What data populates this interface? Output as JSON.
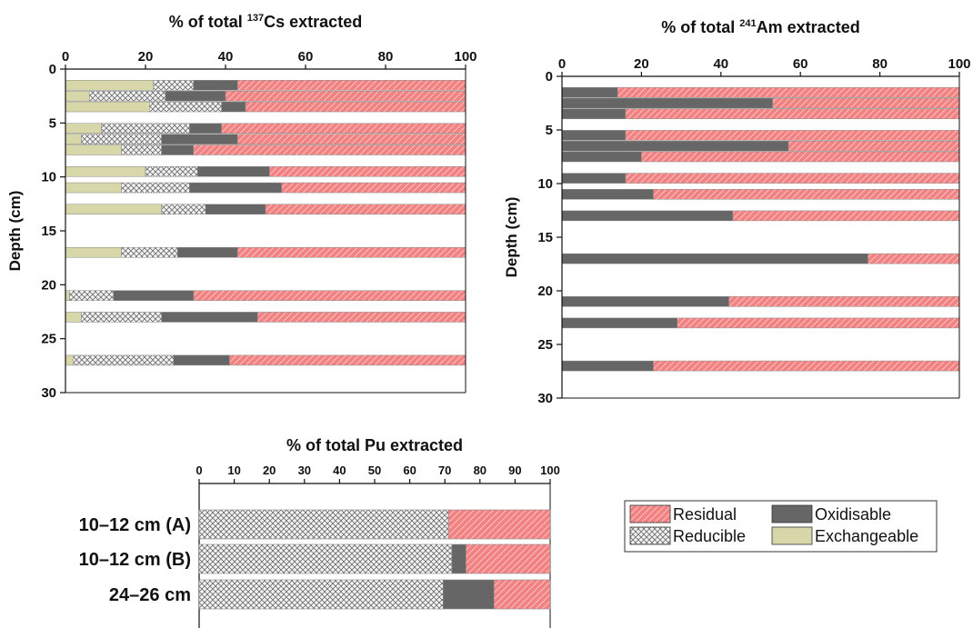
{
  "colors": {
    "Residual": "#f28282",
    "Residual_hatch": "#fbd2d2",
    "Oxidisable": "#666666",
    "Reducible": "#f4f4f4",
    "Reducible_hatch": "#6a6a6a",
    "Exchangeable": "#d7d7a9"
  },
  "chart_data": [
    {
      "type": "bar",
      "orientation": "horizontal",
      "stacked": true,
      "title_pre": "% of total ",
      "title_sup": "137",
      "title_post": "Cs extracted",
      "ylabel": "Depth (cm)",
      "xlim": [
        0,
        100
      ],
      "ylim": [
        30,
        0
      ],
      "xticks": [
        0,
        20,
        40,
        60,
        80,
        100
      ],
      "yticks": [
        0,
        5,
        10,
        15,
        20,
        25,
        30
      ],
      "series_order": [
        "Exchangeable",
        "Reducible",
        "Oxidisable",
        "Residual"
      ],
      "bars": [
        {
          "depth": 1.5,
          "Exchangeable": 22,
          "Reducible": 10,
          "Oxidisable": 11,
          "Residual": 57
        },
        {
          "depth": 2.5,
          "Exchangeable": 6,
          "Reducible": 19,
          "Oxidisable": 15,
          "Residual": 60
        },
        {
          "depth": 3.5,
          "Exchangeable": 21,
          "Reducible": 18,
          "Oxidisable": 6,
          "Residual": 55
        },
        {
          "depth": 5.5,
          "Exchangeable": 9,
          "Reducible": 22,
          "Oxidisable": 8,
          "Residual": 61
        },
        {
          "depth": 6.5,
          "Exchangeable": 4,
          "Reducible": 20,
          "Oxidisable": 19,
          "Residual": 57
        },
        {
          "depth": 7.5,
          "Exchangeable": 14,
          "Reducible": 10,
          "Oxidisable": 8,
          "Residual": 68
        },
        {
          "depth": 9.5,
          "Exchangeable": 20,
          "Reducible": 13,
          "Oxidisable": 18,
          "Residual": 49
        },
        {
          "depth": 11,
          "Exchangeable": 14,
          "Reducible": 17,
          "Oxidisable": 23,
          "Residual": 46
        },
        {
          "depth": 13,
          "Exchangeable": 24,
          "Reducible": 11,
          "Oxidisable": 15,
          "Residual": 50
        },
        {
          "depth": 17,
          "Exchangeable": 14,
          "Reducible": 14,
          "Oxidisable": 15,
          "Residual": 57
        },
        {
          "depth": 21,
          "Exchangeable": 1,
          "Reducible": 11,
          "Oxidisable": 20,
          "Residual": 68
        },
        {
          "depth": 23,
          "Exchangeable": 4,
          "Reducible": 20,
          "Oxidisable": 24,
          "Residual": 52
        },
        {
          "depth": 27,
          "Exchangeable": 2,
          "Reducible": 25,
          "Oxidisable": 14,
          "Residual": 59
        }
      ]
    },
    {
      "type": "bar",
      "orientation": "horizontal",
      "stacked": true,
      "title_pre": "% of total ",
      "title_sup": "241",
      "title_post": "Am extracted",
      "ylabel": "Depth (cm)",
      "xlim": [
        0,
        100
      ],
      "ylim": [
        30,
        0
      ],
      "xticks": [
        0,
        20,
        40,
        60,
        80,
        100
      ],
      "yticks": [
        0,
        5,
        10,
        15,
        20,
        25,
        30
      ],
      "series_order": [
        "Oxidisable",
        "Residual"
      ],
      "bars": [
        {
          "depth": 1.5,
          "Oxidisable": 14,
          "Residual": 86
        },
        {
          "depth": 2.5,
          "Oxidisable": 53,
          "Residual": 47
        },
        {
          "depth": 3.5,
          "Oxidisable": 16,
          "Residual": 84
        },
        {
          "depth": 5.5,
          "Oxidisable": 16,
          "Residual": 84
        },
        {
          "depth": 6.5,
          "Oxidisable": 57,
          "Residual": 43
        },
        {
          "depth": 7.5,
          "Oxidisable": 20,
          "Residual": 80
        },
        {
          "depth": 9.5,
          "Oxidisable": 16,
          "Residual": 84
        },
        {
          "depth": 11,
          "Oxidisable": 23,
          "Residual": 77
        },
        {
          "depth": 13,
          "Oxidisable": 43,
          "Residual": 57
        },
        {
          "depth": 17,
          "Oxidisable": 77,
          "Residual": 23
        },
        {
          "depth": 21,
          "Oxidisable": 42,
          "Residual": 58
        },
        {
          "depth": 23,
          "Oxidisable": 29,
          "Residual": 71
        },
        {
          "depth": 27,
          "Oxidisable": 23,
          "Residual": 77
        }
      ]
    },
    {
      "type": "bar",
      "orientation": "horizontal",
      "stacked": true,
      "title": "% of total Pu extracted",
      "xlim": [
        0,
        100
      ],
      "xticks": [
        0,
        10,
        20,
        30,
        40,
        50,
        60,
        70,
        80,
        90,
        100
      ],
      "series_order": [
        "Reducible",
        "Oxidisable",
        "Residual"
      ],
      "categories": [
        "10–12 cm  (A)",
        "10–12 cm  (B)",
        "24–26 cm"
      ],
      "bars": [
        {
          "label": "10–12 cm  (A)",
          "Reducible": 71,
          "Oxidisable": 0,
          "Residual": 29
        },
        {
          "label": "10–12 cm  (B)",
          "Reducible": 72,
          "Oxidisable": 4,
          "Residual": 24
        },
        {
          "label": "24–26 cm",
          "Reducible": 69.5,
          "Oxidisable": 14.5,
          "Residual": 16
        }
      ]
    }
  ],
  "legend": {
    "placement": "bottom-right",
    "items": [
      "Residual",
      "Oxidisable",
      "Reducible",
      "Exchangeable"
    ]
  }
}
